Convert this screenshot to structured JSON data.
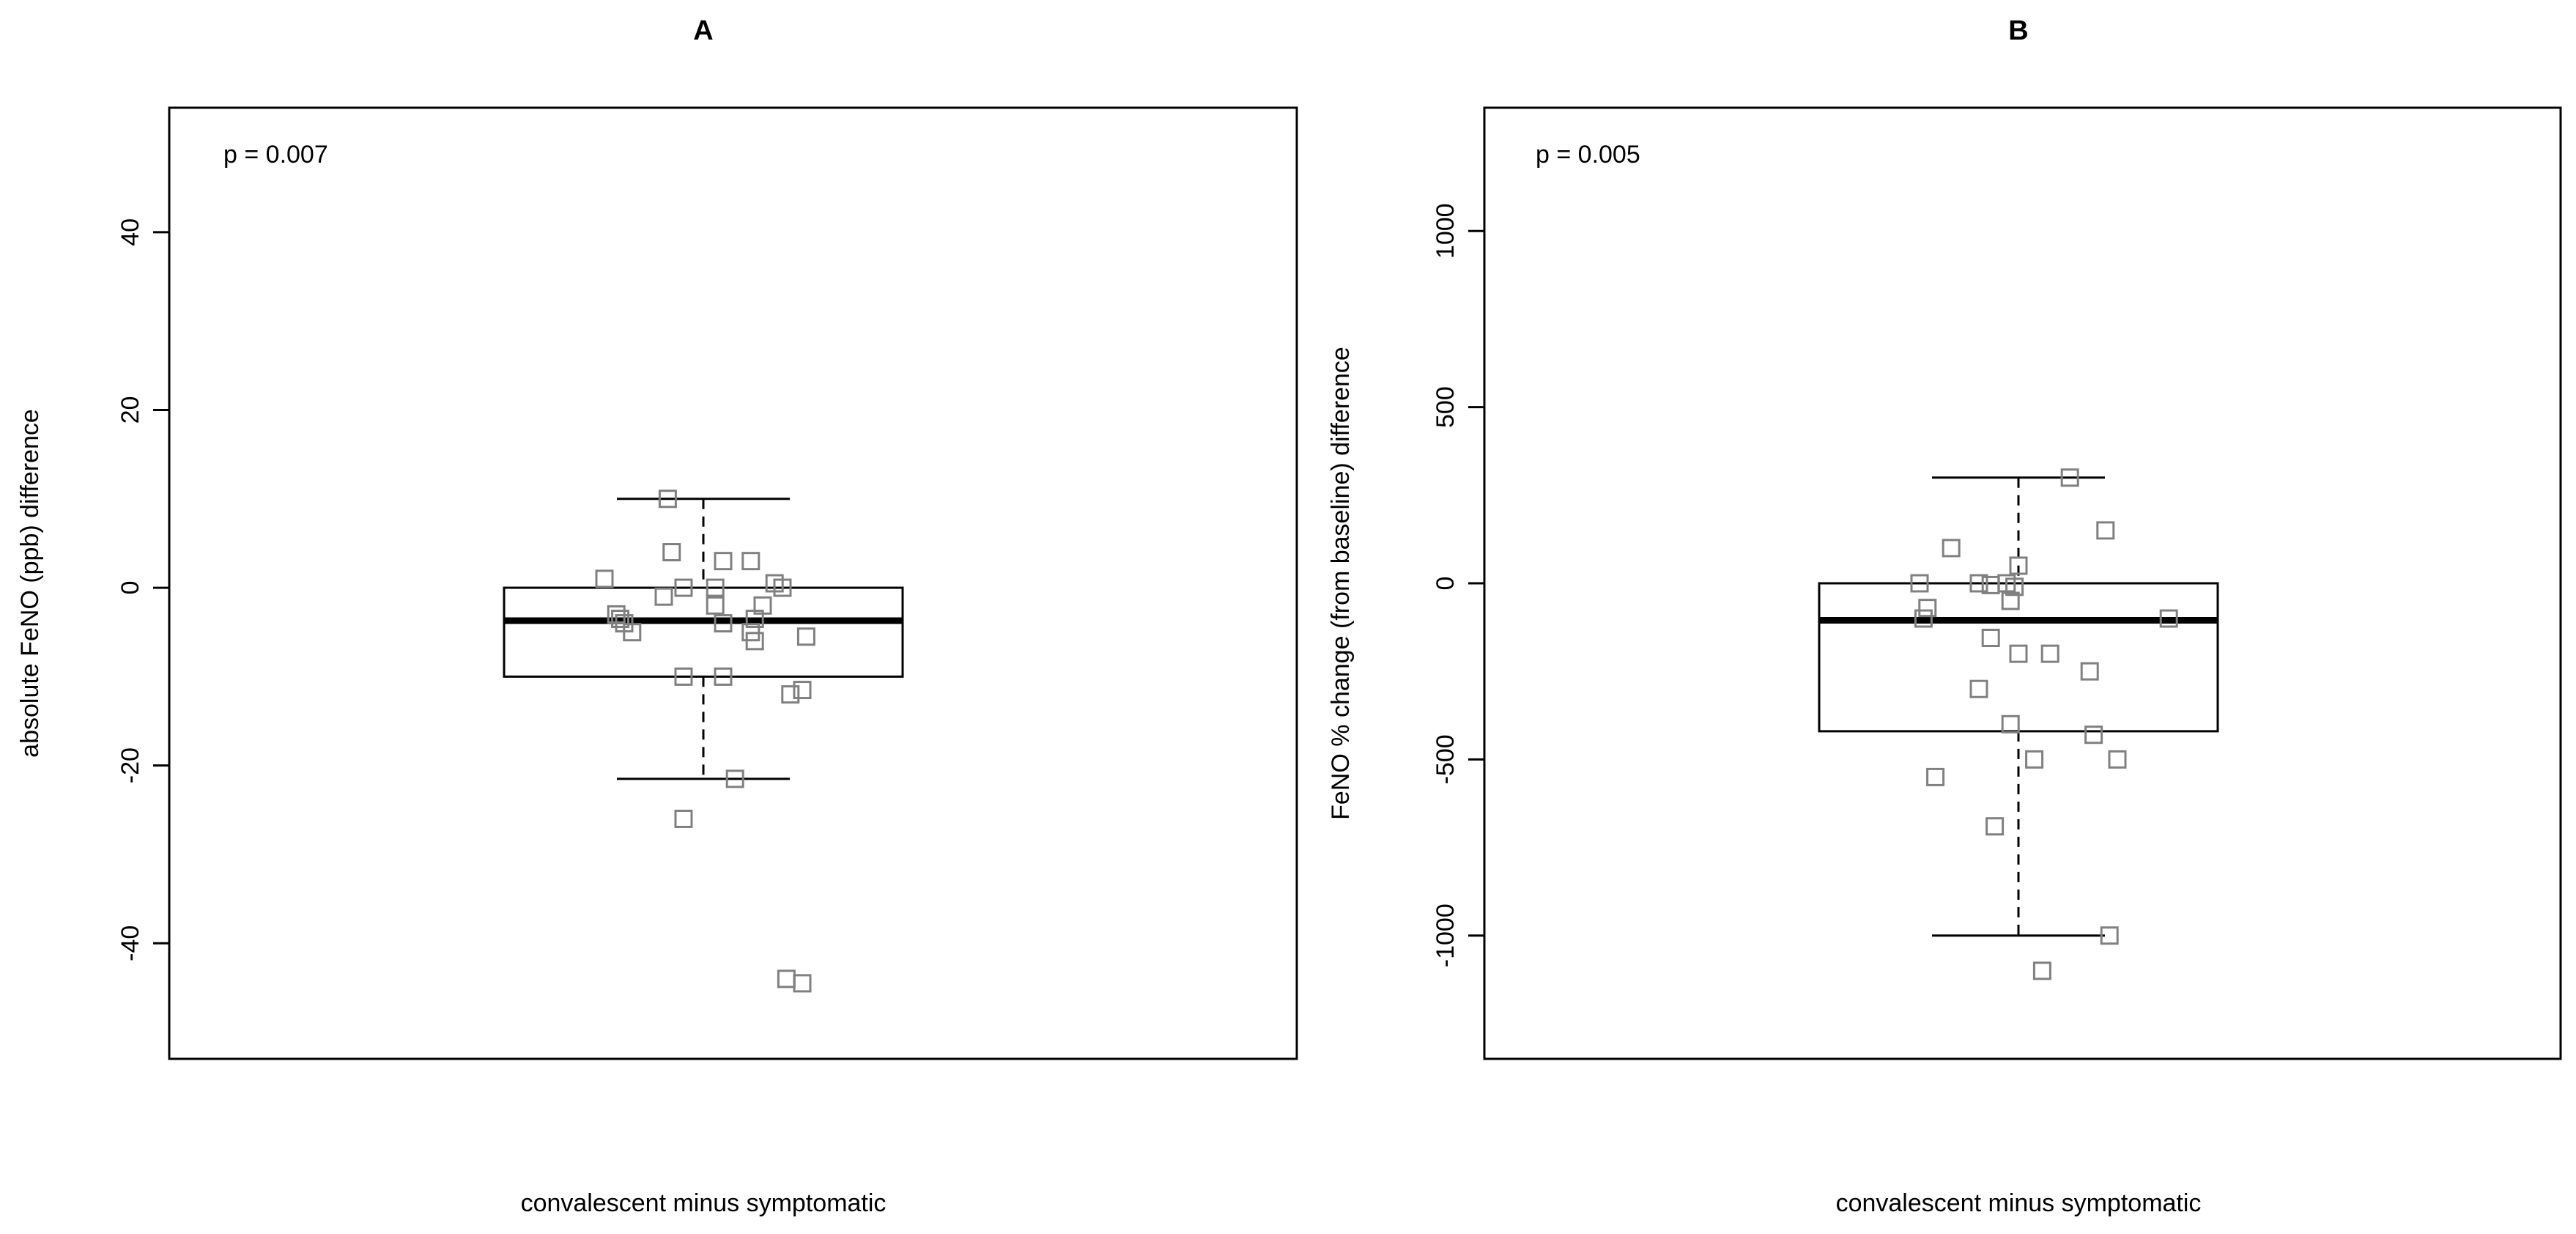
{
  "chart_data": [
    {
      "type": "boxplot",
      "title": "A",
      "xlabel": "convalescent minus symptomatic",
      "ylabel": "absolute FeNO (ppb) difference",
      "annotation": "p = 0.007",
      "ylim": [
        -53,
        54
      ],
      "yticks": [
        40,
        20,
        0,
        -20,
        -40
      ],
      "ytick_labels": [
        "40",
        "20",
        "0",
        "-20",
        "-40"
      ],
      "box": {
        "whisker_high": 10,
        "q3": 0,
        "median": -3.7,
        "q1": -10,
        "whisker_low": -21.5
      },
      "points": [
        {
          "jitter": -0.09,
          "value": 10
        },
        {
          "jitter": -0.08,
          "value": 4
        },
        {
          "jitter": 0.05,
          "value": 3
        },
        {
          "jitter": 0.12,
          "value": 3
        },
        {
          "jitter": -0.25,
          "value": 1
        },
        {
          "jitter": 0.18,
          "value": 0.5
        },
        {
          "jitter": 0.2,
          "value": 0
        },
        {
          "jitter": -0.05,
          "value": 0
        },
        {
          "jitter": 0.03,
          "value": 0
        },
        {
          "jitter": -0.1,
          "value": -1
        },
        {
          "jitter": 0.03,
          "value": -2
        },
        {
          "jitter": 0.15,
          "value": -2
        },
        {
          "jitter": -0.22,
          "value": -3
        },
        {
          "jitter": -0.21,
          "value": -3.5
        },
        {
          "jitter": 0.13,
          "value": -3.5
        },
        {
          "jitter": -0.2,
          "value": -4
        },
        {
          "jitter": 0.05,
          "value": -4
        },
        {
          "jitter": -0.18,
          "value": -5
        },
        {
          "jitter": 0.12,
          "value": -5
        },
        {
          "jitter": 0.26,
          "value": -5.5
        },
        {
          "jitter": 0.13,
          "value": -6
        },
        {
          "jitter": -0.05,
          "value": -10
        },
        {
          "jitter": 0.05,
          "value": -10
        },
        {
          "jitter": 0.25,
          "value": -11.5
        },
        {
          "jitter": 0.22,
          "value": -12
        },
        {
          "jitter": 0.08,
          "value": -21.5
        },
        {
          "jitter": -0.05,
          "value": -26
        },
        {
          "jitter": 0.21,
          "value": -44
        },
        {
          "jitter": 0.25,
          "value": -44.5
        }
      ]
    },
    {
      "type": "boxplot",
      "title": "B",
      "xlabel": "convalescent minus symptomatic",
      "ylabel": "FeNO % change (from baseline) difference",
      "annotation": "p = 0.005",
      "ylim": [
        -1350,
        1350
      ],
      "yticks": [
        1000,
        500,
        0,
        -500,
        -1000
      ],
      "ytick_labels": [
        "1000",
        "500",
        "0",
        "-500",
        "-1000"
      ],
      "box": {
        "whisker_high": 300,
        "q3": 0,
        "median": -105,
        "q1": -420,
        "whisker_low": -1000
      },
      "points": [
        {
          "jitter": 0.13,
          "value": 300
        },
        {
          "jitter": 0.22,
          "value": 150
        },
        {
          "jitter": -0.17,
          "value": 100
        },
        {
          "jitter": 0.0,
          "value": 50
        },
        {
          "jitter": -0.25,
          "value": 0
        },
        {
          "jitter": -0.1,
          "value": 0
        },
        {
          "jitter": -0.07,
          "value": -5
        },
        {
          "jitter": -0.03,
          "value": 0
        },
        {
          "jitter": -0.01,
          "value": -10
        },
        {
          "jitter": -0.02,
          "value": -50
        },
        {
          "jitter": -0.23,
          "value": -70
        },
        {
          "jitter": -0.24,
          "value": -100
        },
        {
          "jitter": 0.38,
          "value": -100
        },
        {
          "jitter": -0.07,
          "value": -155
        },
        {
          "jitter": 0.0,
          "value": -200
        },
        {
          "jitter": 0.08,
          "value": -200
        },
        {
          "jitter": 0.18,
          "value": -250
        },
        {
          "jitter": -0.1,
          "value": -300
        },
        {
          "jitter": -0.02,
          "value": -400
        },
        {
          "jitter": 0.19,
          "value": -430
        },
        {
          "jitter": 0.04,
          "value": -500
        },
        {
          "jitter": 0.25,
          "value": -500
        },
        {
          "jitter": -0.21,
          "value": -550
        },
        {
          "jitter": -0.06,
          "value": -690
        },
        {
          "jitter": 0.23,
          "value": -1000
        },
        {
          "jitter": 0.06,
          "value": -1100
        }
      ]
    }
  ]
}
